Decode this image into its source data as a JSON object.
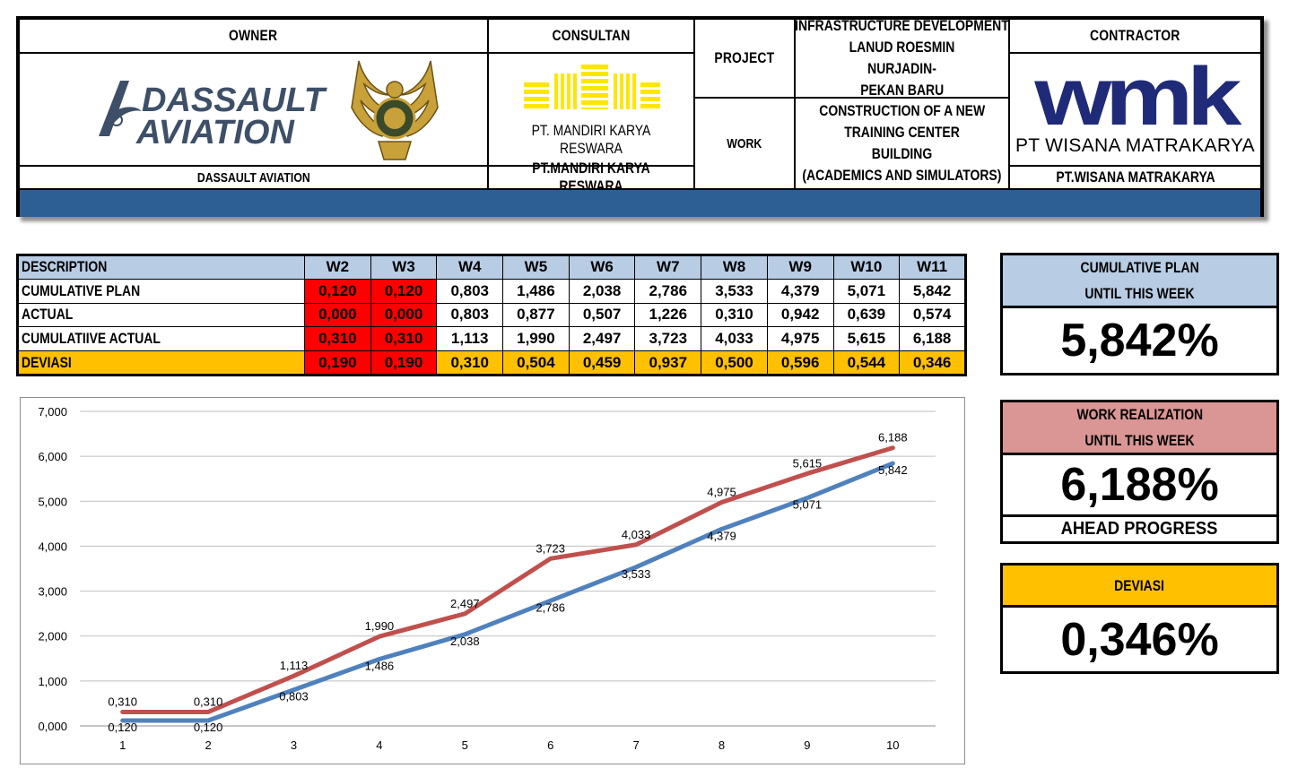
{
  "header": {
    "owner_label": "OWNER",
    "owner_logo_line1": "DASSAULT",
    "owner_logo_line2": "AVIATION",
    "owner_name": "DASSAULT AVIATION",
    "consultant_label": "CONSULTAN",
    "consultant_logo_text": "PT. MANDIRI KARYA RESWARA",
    "consultant_name": "PT.MANDIRI KARYA RESWARA",
    "project_label": "PROJECT",
    "project_line1": "INFRASTRUCTURE DEVELOPMENT",
    "project_line2": "LANUD ROESMIN NURJADIN-",
    "project_line3": "PEKAN BARU",
    "work_label": "WORK",
    "work_line1": "CONSTRUCTION OF A NEW",
    "work_line2": "TRAINING CENTER BUILDING",
    "work_line3": "(ACADEMICS AND SIMULATORS)",
    "contractor_label": "CONTRACTOR",
    "contractor_logo_mark": "wmk",
    "contractor_logo_text": "PT WISANA MATRAKARYA",
    "contractor_name": "PT.WISANA MATRAKARYA"
  },
  "table": {
    "desc_header": "DESCRIPTION",
    "weeks": [
      "W2",
      "W3",
      "W4",
      "W5",
      "W6",
      "W7",
      "W8",
      "W9",
      "W10",
      "W11"
    ],
    "rows": [
      {
        "label": "CUMULATIVE PLAN",
        "values": [
          "0,120",
          "0,120",
          "0,803",
          "1,486",
          "2,038",
          "2,786",
          "3,533",
          "4,379",
          "5,071",
          "5,842"
        ]
      },
      {
        "label": "ACTUAL",
        "values": [
          "0,000",
          "0,000",
          "0,803",
          "0,877",
          "0,507",
          "1,226",
          "0,310",
          "0,942",
          "0,639",
          "0,574"
        ]
      },
      {
        "label": "CUMULATIIVE ACTUAL",
        "values": [
          "0,310",
          "0,310",
          "1,113",
          "1,990",
          "2,497",
          "3,723",
          "4,033",
          "4,975",
          "5,615",
          "6,188"
        ]
      },
      {
        "label": "DEVIASI",
        "values": [
          "0,190",
          "0,190",
          "0,310",
          "0,504",
          "0,459",
          "0,937",
          "0,500",
          "0,596",
          "0,544",
          "0,346"
        ]
      }
    ],
    "red_columns": 2
  },
  "summary": {
    "plan_caption_1": "CUMULATIVE PLAN",
    "plan_caption_2": "UNTIL THIS WEEK",
    "plan_value": "5,842%",
    "real_caption_1": "WORK REALIZATION",
    "real_caption_2": "UNTIL THIS WEEK",
    "real_value": "6,188%",
    "real_status": "AHEAD PROGRESS",
    "dev_caption": "DEVIASI",
    "dev_value": "0,346%"
  },
  "colors": {
    "header_band": "#2e5f94",
    "table_header": "#b8cce4",
    "red_cell": "#ff0000",
    "deviation_row": "#ffc000",
    "plan_caption_bg": "#b8cce4",
    "real_caption_bg": "#da9694",
    "dev_caption_bg": "#ffc000",
    "plan_line": "#4f81bd",
    "actual_line": "#c0504d"
  },
  "chart_data": {
    "type": "line",
    "x": [
      1,
      2,
      3,
      4,
      5,
      6,
      7,
      8,
      9,
      10
    ],
    "ylim": [
      0,
      7
    ],
    "yticks": [
      "0,000",
      "1,000",
      "2,000",
      "3,000",
      "4,000",
      "5,000",
      "6,000",
      "7,000"
    ],
    "grid": true,
    "legend": "none",
    "series": [
      {
        "color": "#4f81bd",
        "values": [
          0.12,
          0.12,
          0.803,
          1.486,
          2.038,
          2.786,
          3.533,
          4.379,
          5.071,
          5.842
        ],
        "labels": [
          "0,120",
          "0,120",
          "0,803",
          "1,486",
          "2,038",
          "2,786",
          "3,533",
          "4,379",
          "5,071",
          "5,842"
        ]
      },
      {
        "color": "#c0504d",
        "values": [
          0.31,
          0.31,
          1.113,
          1.99,
          2.497,
          3.723,
          4.033,
          4.975,
          5.615,
          6.188
        ],
        "labels": [
          "0,310",
          "0,310",
          "1,113",
          "1,990",
          "2,497",
          "3,723",
          "4,033",
          "4,975",
          "5,615",
          "6,188"
        ]
      }
    ]
  }
}
